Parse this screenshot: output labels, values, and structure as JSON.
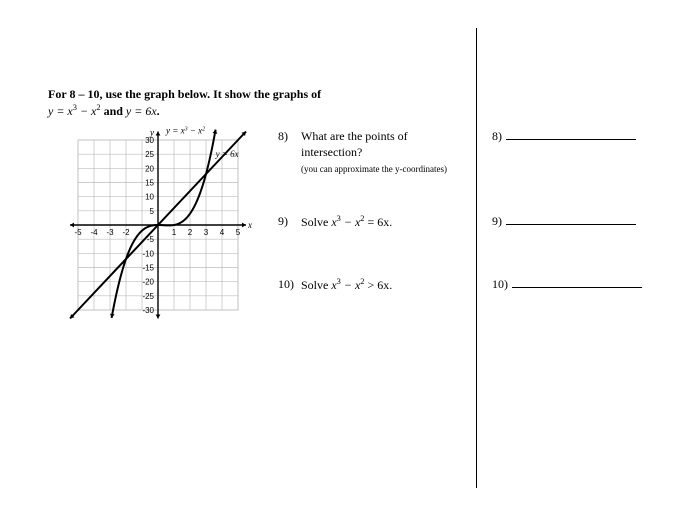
{
  "instruction": {
    "line1": "For 8 – 10, use the graph below.  It show the graphs of",
    "eq1_plain": "y = x",
    "eq1_exp_a": "3",
    "eq1_mid": " − x",
    "eq1_exp_b": "2",
    "conj": " and ",
    "eq2_plain": "y = 6x",
    "period": "."
  },
  "graph": {
    "labels": {
      "y_axis": "y",
      "x_axis": "x",
      "curve1_plain": "y = x",
      "curve1_exp_a": "3",
      "curve1_mid": " − x",
      "curve1_exp_b": "2",
      "curve2": "y = 6x"
    },
    "x_ticks": [
      "-5",
      "-4",
      "-3",
      "-2",
      "1",
      "2",
      "3",
      "4",
      "5"
    ],
    "y_ticks_pos": [
      "5",
      "10",
      "15",
      "20",
      "25",
      "30"
    ],
    "y_ticks_neg": [
      "-5",
      "-10",
      "-15",
      "-20",
      "-25",
      "-30"
    ],
    "style": {
      "grid_color": "#bdbdbd",
      "axis_color": "#000000",
      "curve_color": "#000000",
      "line_color": "#000000",
      "arrow_color": "#000000",
      "tick_font": 8
    },
    "x_range": [
      -5.5,
      5.5
    ],
    "y_range": [
      -33,
      33
    ],
    "line": {
      "type": "line",
      "m": 6,
      "b": 0
    },
    "curve": {
      "type": "cubic",
      "note": "y = x^3 - x^2"
    }
  },
  "questions": {
    "q8": {
      "num": "8)",
      "text": "What are the points of intersection?",
      "sub": "(you can approximate the y-coordinates)"
    },
    "q9": {
      "num": "9)",
      "prefix": "Solve  ",
      "lhs_a": "x",
      "exp_a": "3",
      "mid": " − x",
      "exp_b": "2",
      "rhs": " = 6x."
    },
    "q10": {
      "num": "10)",
      "prefix": "Solve  ",
      "lhs_a": "x",
      "exp_a": "3",
      "mid": " − x",
      "exp_b": "2",
      "rhs": " > 6x."
    }
  },
  "answers": {
    "a8": "8)",
    "a9": "9)",
    "a10": "10)"
  }
}
